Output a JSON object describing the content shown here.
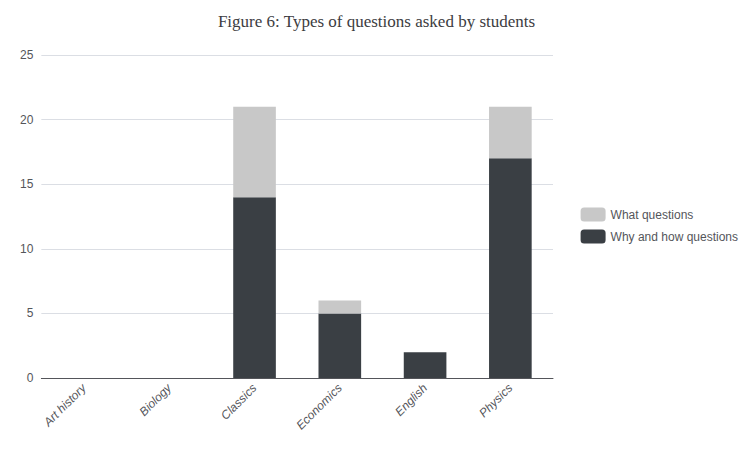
{
  "chart_data": {
    "type": "bar",
    "stacked": true,
    "title": "Figure 6: Types of questions asked by students",
    "categories": [
      "Art history",
      "Biology",
      "Classics",
      "Economics",
      "English",
      "Physics"
    ],
    "series": [
      {
        "name": "Why and how questions",
        "color": "#3a3f44",
        "values": [
          0,
          0,
          14,
          5,
          2,
          17
        ]
      },
      {
        "name": "What questions",
        "color": "#c8c8c8",
        "values": [
          0,
          0,
          7,
          1,
          0,
          4
        ]
      }
    ],
    "ylim": [
      0,
      25
    ],
    "yticks": [
      0,
      5,
      10,
      15,
      20,
      25
    ],
    "grid": true,
    "legend": "right"
  }
}
